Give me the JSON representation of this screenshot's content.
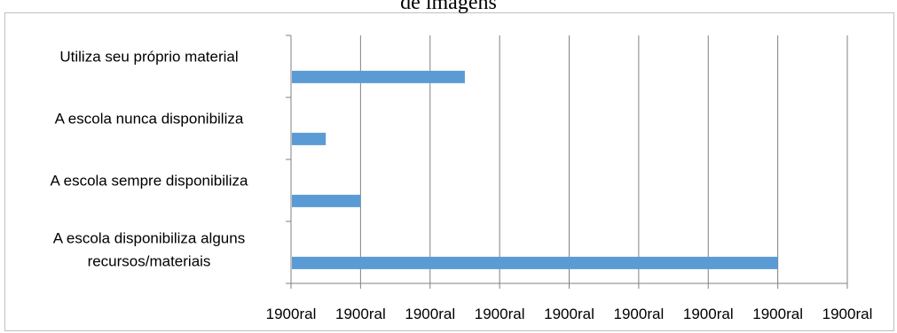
{
  "chart_data": {
    "type": "bar",
    "orientation": "horizontal",
    "title": "de imagens",
    "categories": [
      "Utiliza seu próprio material",
      "A escola nunca disponibiliza",
      "A escola sempre disponibiliza",
      "A escola disponibiliza alguns recursos/materiais"
    ],
    "category_lines": [
      [
        "Utiliza seu próprio material"
      ],
      [
        "A escola nunca disponibiliza"
      ],
      [
        "A escola sempre disponibiliza"
      ],
      [
        "A escola disponibiliza alguns",
        "recursos/materiais"
      ]
    ],
    "values": [
      2.5,
      0.5,
      1,
      7
    ],
    "xlim": [
      0,
      8
    ],
    "x_tick_labels": [
      "1900ral",
      "1900ral",
      "1900ral",
      "1900ral",
      "1900ral",
      "1900ral",
      "1900ral",
      "1900ral",
      "1900ral"
    ],
    "grid": "vertical",
    "bar_color": "#5b9bd5",
    "gridline_color": "#808080",
    "legend": "none"
  }
}
